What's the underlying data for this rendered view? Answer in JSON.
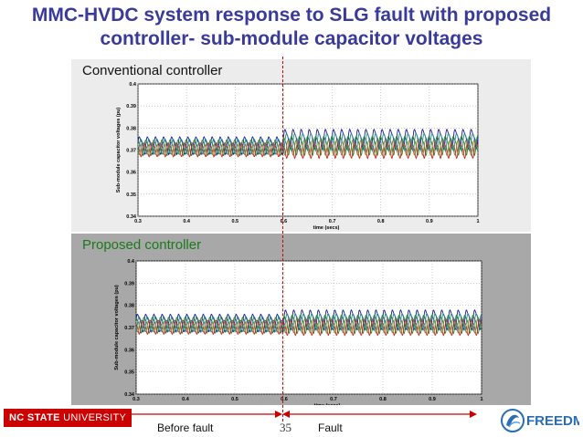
{
  "slide": {
    "title_line1": "MMC-HVDC system response to SLG fault with proposed",
    "title_line2": "controller- sub-module capacitor voltages",
    "page_number": "35",
    "before_label": "Before fault",
    "fault_label": "Fault",
    "university": "NC STATE UNIVERSITY",
    "university_bold": "NC STATE",
    "university_light": " UNIVERSITY",
    "partner_logo_text": "FREEDM",
    "colors": {
      "title": "#3a3a9a",
      "fault_marker": "#cc0000",
      "ncsu_red": "#cc0000"
    }
  },
  "chart_data": [
    {
      "type": "line",
      "panel_label": "Conventional controller",
      "xlabel": "time (secs)",
      "ylabel": "Sub-module capacitor voltages (pu)",
      "xlim": [
        0.3,
        1.0
      ],
      "ylim": [
        0.34,
        0.4
      ],
      "xticks": [
        "0.3",
        "0.4",
        "0.5",
        "0.6",
        "0.7",
        "0.8",
        "0.9",
        "1"
      ],
      "yticks": [
        "0.34",
        "0.35",
        "0.36",
        "0.37",
        "0.38",
        "0.39",
        "0.4"
      ],
      "grid": true,
      "fault_time": 0.6,
      "series": [
        {
          "color": "#1a1aa0",
          "center_before": 0.3725,
          "amp_before": 0.0045,
          "center_after": 0.3755,
          "amp_after": 0.005,
          "phase": 0.0
        },
        {
          "color": "#228b22",
          "center_before": 0.3715,
          "amp_before": 0.004,
          "center_after": 0.3725,
          "amp_after": 0.0048,
          "phase": 1.3
        },
        {
          "color": "#cc2222",
          "center_before": 0.3705,
          "amp_before": 0.0035,
          "center_after": 0.3705,
          "amp_after": 0.0042,
          "phase": 2.6
        },
        {
          "color": "#8b7d2a",
          "center_before": 0.371,
          "amp_before": 0.003,
          "center_after": 0.3715,
          "amp_after": 0.0038,
          "phase": 3.9
        },
        {
          "color": "#2e8b8b",
          "center_before": 0.372,
          "amp_before": 0.0038,
          "center_after": 0.374,
          "amp_after": 0.0044,
          "phase": 5.1
        }
      ]
    },
    {
      "type": "line",
      "panel_label": "Proposed controller",
      "xlabel": "time (secs)",
      "ylabel": "Sub-module capacitor voltages (pu)",
      "xlim": [
        0.3,
        1.0
      ],
      "ylim": [
        0.34,
        0.4
      ],
      "xticks": [
        "0.3",
        "0.4",
        "0.5",
        "0.6",
        "0.7",
        "0.8",
        "0.9",
        "1"
      ],
      "yticks": [
        "0.34",
        "0.35",
        "0.36",
        "0.37",
        "0.38",
        "0.39",
        "0.4"
      ],
      "grid": true,
      "fault_time": 0.6,
      "series": [
        {
          "color": "#1a1aa0",
          "center_before": 0.3725,
          "amp_before": 0.0045,
          "center_after": 0.374,
          "amp_after": 0.005,
          "phase": 0.0
        },
        {
          "color": "#228b22",
          "center_before": 0.3715,
          "amp_before": 0.004,
          "center_after": 0.372,
          "amp_after": 0.0046,
          "phase": 1.3
        },
        {
          "color": "#cc2222",
          "center_before": 0.3705,
          "amp_before": 0.0035,
          "center_after": 0.3705,
          "amp_after": 0.004,
          "phase": 2.6
        },
        {
          "color": "#8b7d2a",
          "center_before": 0.371,
          "amp_before": 0.003,
          "center_after": 0.3712,
          "amp_after": 0.0036,
          "phase": 3.9
        },
        {
          "color": "#2e8b8b",
          "center_before": 0.372,
          "amp_before": 0.0038,
          "center_after": 0.373,
          "amp_after": 0.0042,
          "phase": 5.1
        }
      ]
    }
  ]
}
